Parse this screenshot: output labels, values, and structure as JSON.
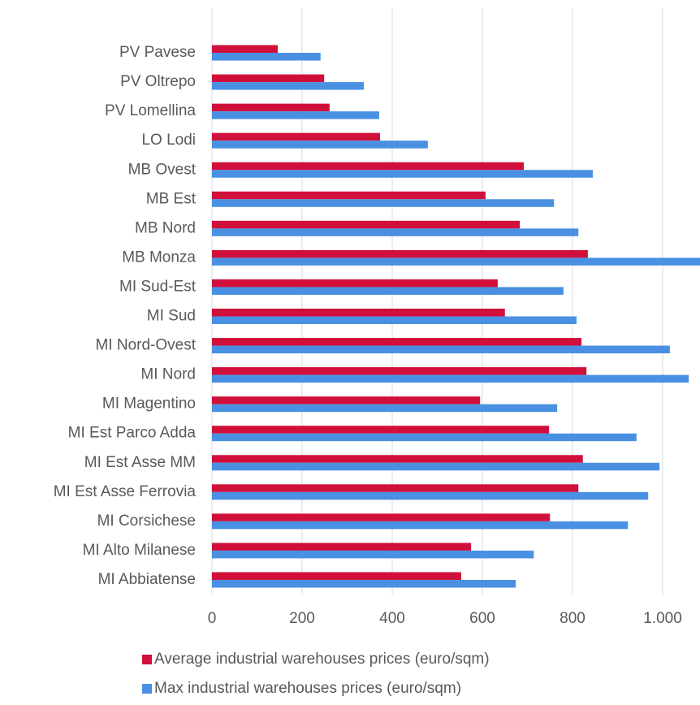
{
  "chart_data": {
    "type": "bar",
    "orientation": "horizontal",
    "categories": [
      "PV Pavese",
      "PV Oltrepo",
      "PV Lomellina",
      "LO Lodi",
      "MB Ovest",
      "MB Est",
      "MB Nord",
      "MB Monza",
      "MI Sud-Est",
      "MI Sud",
      "MI Nord-Ovest",
      "MI Nord",
      "MI Magentino",
      "MI Est Parco Adda",
      "MI Est Asse MM",
      "MI Est Asse Ferrovia",
      "MI Corsichese",
      "MI Alto Milanese",
      "MI Abbiatense"
    ],
    "series": [
      {
        "name": "Average industrial warehouses prices (euro/sqm)",
        "color": "#D0103A",
        "values": [
          146,
          249,
          261,
          373,
          692,
          607,
          683,
          834,
          634,
          650,
          820,
          831,
          595,
          748,
          823,
          813,
          750,
          575,
          553
        ]
      },
      {
        "name": "Max industrial warehouses prices (euro/sqm)",
        "color": "#4A90E2",
        "values": [
          241,
          337,
          371,
          479,
          845,
          759,
          813,
          1088,
          780,
          809,
          1016,
          1058,
          766,
          942,
          993,
          968,
          923,
          714,
          674
        ]
      }
    ],
    "xlim": [
      0,
      1100
    ],
    "xticks": [
      0,
      200,
      400,
      600,
      800,
      {
        "value": 1000,
        "label": "1.000"
      }
    ],
    "grid": true
  }
}
